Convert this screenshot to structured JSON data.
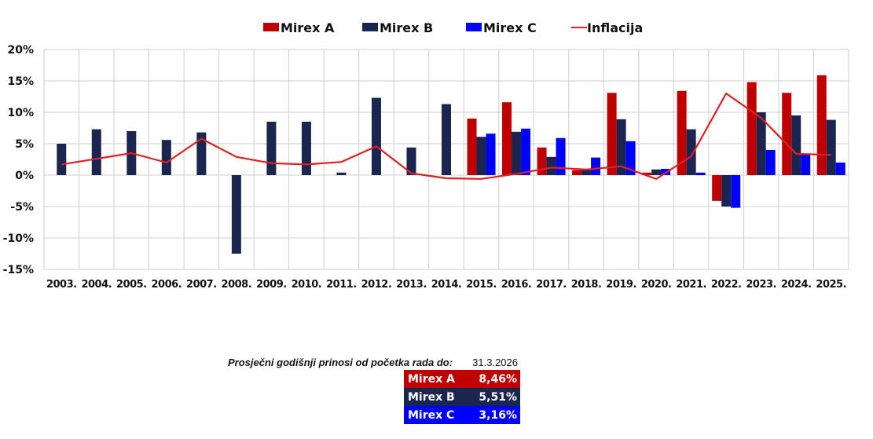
{
  "chart_data": {
    "type": "bar",
    "title": "",
    "xlabel": "",
    "ylabel": "",
    "ylim": [
      -15,
      20
    ],
    "yticks": [
      20,
      15,
      10,
      5,
      0,
      -5,
      -10,
      -15
    ],
    "ytick_labels": [
      "20%",
      "15%",
      "10%",
      "5%",
      "0%",
      "-5%",
      "-10%",
      "-15%"
    ],
    "grid": true,
    "legend_position": "top-center",
    "categories": [
      "2003.",
      "2004.",
      "2005.",
      "2006.",
      "2007.",
      "2008.",
      "2009.",
      "2010.",
      "2011.",
      "2012.",
      "2013.",
      "2014.",
      "2015.",
      "2016.",
      "2017.",
      "2018.",
      "2019.",
      "2020.",
      "2021.",
      "2022.",
      "2023.",
      "2024.",
      "2025."
    ],
    "series": [
      {
        "name": "Mirex A",
        "kind": "bar",
        "color": "#C00000",
        "values": [
          null,
          null,
          null,
          null,
          null,
          null,
          null,
          null,
          null,
          null,
          null,
          null,
          9.0,
          11.6,
          4.4,
          0.8,
          13.1,
          0.4,
          13.4,
          -4.1,
          14.8,
          13.1,
          15.9
        ]
      },
      {
        "name": "Mirex B",
        "kind": "bar",
        "color": "#1A2550",
        "values": [
          5.0,
          7.3,
          7.0,
          5.6,
          6.8,
          -12.5,
          8.5,
          8.5,
          0.4,
          12.3,
          4.4,
          11.3,
          6.1,
          6.9,
          2.9,
          0.8,
          8.9,
          0.9,
          7.3,
          -5.0,
          10.0,
          9.5,
          8.8
        ]
      },
      {
        "name": "Mirex C",
        "kind": "bar",
        "color": "#0000FF",
        "values": [
          null,
          null,
          null,
          null,
          null,
          null,
          null,
          null,
          null,
          null,
          null,
          null,
          6.6,
          7.4,
          5.9,
          2.8,
          5.4,
          1.0,
          0.4,
          -5.2,
          4.0,
          3.4,
          2.0
        ]
      },
      {
        "name": "Inflacija",
        "kind": "line",
        "color": "#E02020",
        "values": [
          1.7,
          2.6,
          3.5,
          2.0,
          5.8,
          2.9,
          1.9,
          1.7,
          2.1,
          4.6,
          0.3,
          -0.5,
          -0.6,
          0.2,
          1.2,
          0.9,
          1.4,
          -0.6,
          3.0,
          13.0,
          9.1,
          3.4,
          3.2
        ]
      }
    ]
  },
  "summary": {
    "title": "Prosječni godišnji prinosi od početka rada do:",
    "date": "31.3.2026",
    "rows": [
      {
        "label": "Mirex A",
        "value": "8,46%",
        "color": "#C00000"
      },
      {
        "label": "Mirex B",
        "value": "5,51%",
        "color": "#1A2550"
      },
      {
        "label": "Mirex C",
        "value": "3,16%",
        "color": "#0000FF"
      }
    ]
  }
}
